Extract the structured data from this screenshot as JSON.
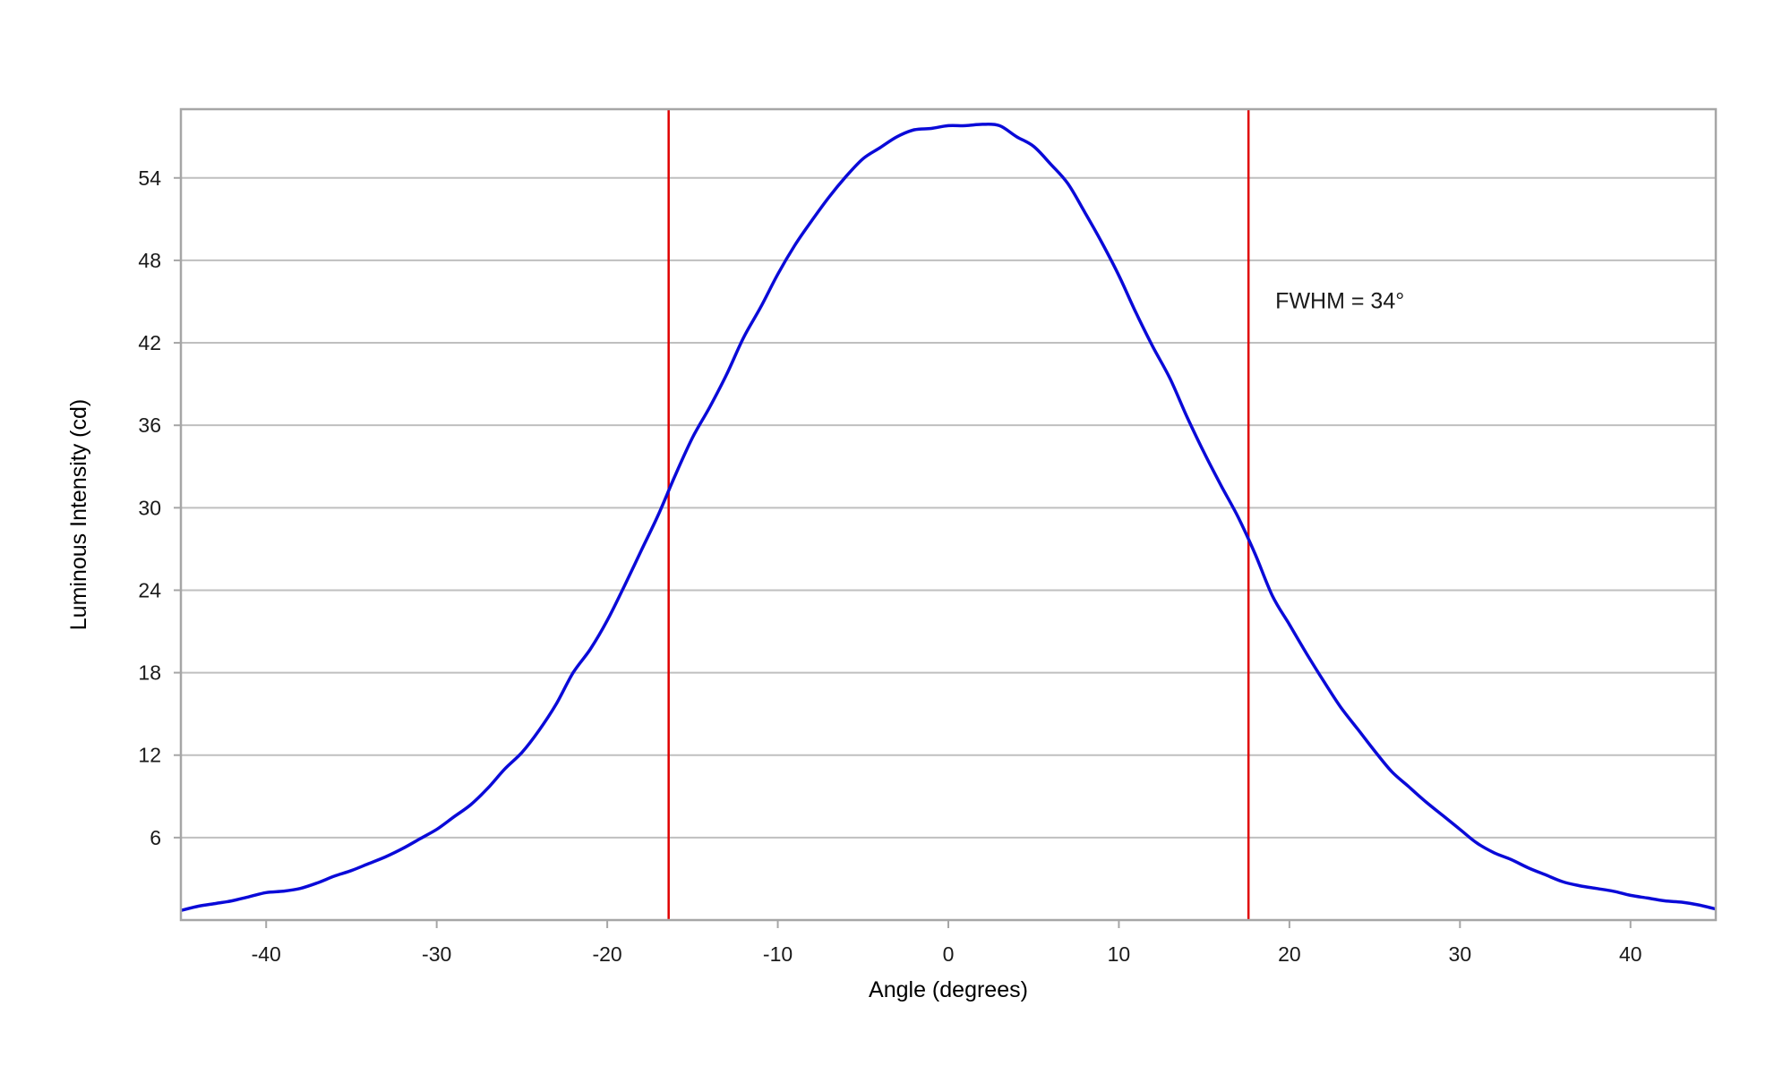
{
  "chart_data": {
    "type": "line",
    "title": "",
    "xlabel": "Angle (degrees)",
    "ylabel": "Luminous Intensity (cd)",
    "xlim": [
      -45,
      45
    ],
    "ylim": [
      0,
      59
    ],
    "xticks": [
      -40,
      -30,
      -20,
      -10,
      0,
      10,
      20,
      30,
      40
    ],
    "yticks": [
      6,
      12,
      18,
      24,
      30,
      36,
      42,
      48,
      54
    ],
    "grid": "horizontal",
    "legend": "none",
    "annotation": "FWHM = 34°",
    "markers": {
      "x": [
        -16.4,
        17.6
      ],
      "color": "#e00000"
    },
    "series": [
      {
        "color": "#0a0ad8",
        "x": [
          -45,
          -44,
          -43,
          -42,
          -41,
          -40,
          -39,
          -38,
          -37,
          -36,
          -35,
          -34,
          -33,
          -32,
          -31,
          -30,
          -29,
          -28,
          -27,
          -26,
          -25,
          -24,
          -23,
          -22,
          -21,
          -20,
          -19,
          -18,
          -17,
          -16,
          -15,
          -14,
          -13,
          -12,
          -11,
          -10,
          -9,
          -8,
          -7,
          -6,
          -5,
          -4,
          -3,
          -2,
          -1,
          0,
          1,
          2,
          3,
          4,
          5,
          6,
          7,
          8,
          9,
          10,
          11,
          12,
          13,
          14,
          15,
          16,
          17,
          18,
          19,
          20,
          21,
          22,
          23,
          24,
          25,
          26,
          27,
          28,
          29,
          30,
          31,
          32,
          33,
          34,
          35,
          36,
          37,
          38,
          39,
          40,
          41,
          42,
          43,
          44,
          45
        ],
        "y": [
          0.7,
          1.0,
          1.2,
          1.4,
          1.7,
          2.0,
          2.1,
          2.3,
          2.7,
          3.2,
          3.6,
          4.1,
          4.6,
          5.2,
          5.9,
          6.6,
          7.5,
          8.4,
          9.6,
          11.0,
          12.2,
          13.8,
          15.7,
          18.0,
          19.7,
          21.8,
          24.3,
          26.9,
          29.5,
          32.4,
          35.1,
          37.3,
          39.7,
          42.4,
          44.6,
          47.0,
          49.1,
          50.9,
          52.6,
          54.1,
          55.4,
          56.2,
          57.0,
          57.5,
          57.6,
          57.8,
          57.8,
          57.9,
          57.8,
          57.0,
          56.3,
          55.0,
          53.6,
          51.5,
          49.3,
          46.9,
          44.2,
          41.7,
          39.4,
          36.6,
          34.0,
          31.6,
          29.3,
          26.6,
          23.6,
          21.5,
          19.4,
          17.4,
          15.5,
          13.9,
          12.3,
          10.8,
          9.7,
          8.6,
          7.6,
          6.6,
          5.6,
          4.9,
          4.4,
          3.8,
          3.3,
          2.8,
          2.5,
          2.3,
          2.1,
          1.8,
          1.6,
          1.4,
          1.3,
          1.1,
          0.8
        ]
      }
    ]
  }
}
